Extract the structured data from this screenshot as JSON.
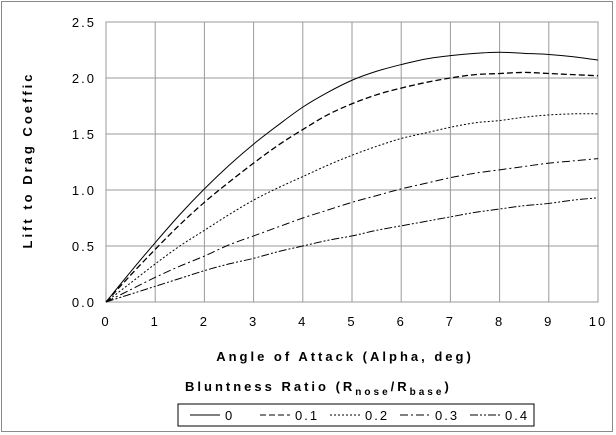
{
  "chart_data": {
    "type": "line",
    "xlabel": "Angle of Attack (Alpha, deg)",
    "ylabel": "Lift to Drag Coeffic",
    "xlim": [
      0,
      10
    ],
    "ylim": [
      0,
      2.5
    ],
    "x_ticks": [
      "0",
      "1",
      "2",
      "3",
      "4",
      "5",
      "6",
      "7",
      "8",
      "9",
      "10"
    ],
    "y_ticks": [
      "0.0",
      "0.5",
      "1.0",
      "1.5",
      "2.0",
      "2.5"
    ],
    "grid": true,
    "legend": {
      "title_main": "Bluntness Ratio (R",
      "title_sub1": "nose",
      "title_mid": "/R",
      "title_sub2": "base",
      "title_end": ")",
      "placement": "bottom"
    },
    "x": [
      0,
      0.5,
      1,
      1.5,
      2,
      2.5,
      3,
      3.5,
      4,
      4.5,
      5,
      5.5,
      6,
      6.5,
      7,
      7.5,
      8,
      8.5,
      9,
      9.5,
      10
    ],
    "series": [
      {
        "name": "0",
        "dash": "",
        "values": [
          0,
          0.27,
          0.53,
          0.78,
          1.01,
          1.22,
          1.41,
          1.58,
          1.74,
          1.87,
          1.98,
          2.06,
          2.12,
          2.17,
          2.2,
          2.22,
          2.23,
          2.22,
          2.21,
          2.19,
          2.16
        ]
      },
      {
        "name": "0.1",
        "dash": "6,3",
        "values": [
          0,
          0.24,
          0.47,
          0.69,
          0.89,
          1.07,
          1.24,
          1.4,
          1.54,
          1.67,
          1.77,
          1.85,
          1.91,
          1.96,
          2.0,
          2.03,
          2.04,
          2.05,
          2.04,
          2.03,
          2.02
        ]
      },
      {
        "name": "0.2",
        "dash": "2,2",
        "values": [
          0,
          0.17,
          0.34,
          0.5,
          0.64,
          0.78,
          0.91,
          1.02,
          1.12,
          1.22,
          1.31,
          1.39,
          1.46,
          1.51,
          1.56,
          1.6,
          1.62,
          1.65,
          1.67,
          1.68,
          1.68
        ]
      },
      {
        "name": "0.3",
        "dash": "8,3,2,3",
        "values": [
          0,
          0.11,
          0.22,
          0.32,
          0.41,
          0.51,
          0.59,
          0.67,
          0.75,
          0.82,
          0.89,
          0.95,
          1.01,
          1.06,
          1.11,
          1.15,
          1.18,
          1.21,
          1.24,
          1.26,
          1.28
        ]
      },
      {
        "name": "0.4",
        "dash": "8,2,2,2,2,2",
        "values": [
          0,
          0.07,
          0.14,
          0.21,
          0.28,
          0.34,
          0.39,
          0.45,
          0.5,
          0.55,
          0.59,
          0.64,
          0.68,
          0.72,
          0.76,
          0.8,
          0.83,
          0.86,
          0.88,
          0.91,
          0.93
        ]
      }
    ]
  }
}
